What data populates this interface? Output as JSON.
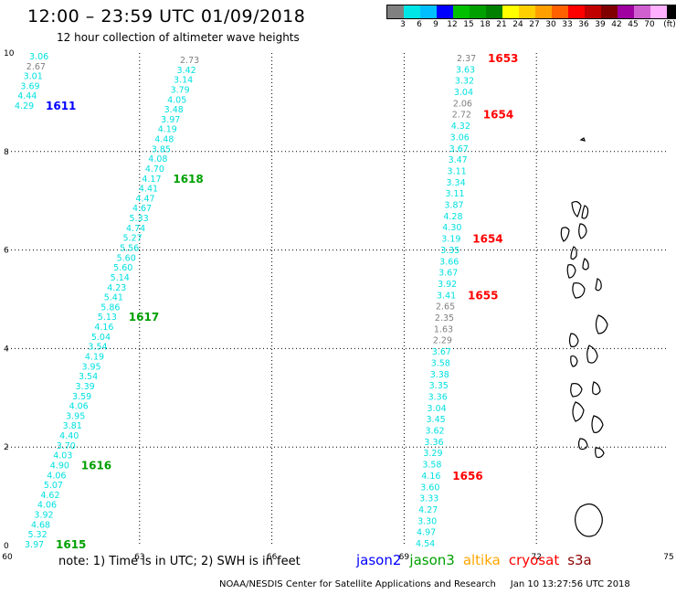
{
  "title": "12:00 – 23:59 UTC 01/09/2018",
  "subtitle": "12 hour collection of altimeter wave heights",
  "colorbar": {
    "colors": [
      "#808080",
      "#00e5e5",
      "#00bfff",
      "#0000ff",
      "#00c000",
      "#00a000",
      "#008000",
      "#ffff00",
      "#ffd000",
      "#ffa000",
      "#ff6000",
      "#ff0000",
      "#c00000",
      "#800000",
      "#a000a0",
      "#d060d0",
      "#ffb0ff",
      "#000000"
    ],
    "labels": [
      "3",
      "6",
      "9",
      "12",
      "15",
      "18",
      "21",
      "24",
      "27",
      "30",
      "33",
      "36",
      "39",
      "42",
      "45",
      "70",
      "(ft)"
    ]
  },
  "axes": {
    "x_ticks": [
      "60",
      "63",
      "66",
      "69",
      "72",
      "75"
    ],
    "y_ticks": [
      "0",
      "2",
      "4",
      "6",
      "8",
      "10"
    ]
  },
  "colors": {
    "jason2": "#0000ff",
    "jason3": "#00a000",
    "altika": "#ffa500",
    "cryosat": "#ff0000",
    "s3a": "#8b0000",
    "swh": "#00e0e0",
    "swh_gray": "#808080"
  },
  "tracks": [
    {
      "name": "left_top",
      "values": [
        {
          "t": "3.06",
          "c": "swh"
        },
        {
          "t": "2.67",
          "c": "swh_gray"
        },
        {
          "t": "3.01",
          "c": "swh"
        },
        {
          "t": "3.69",
          "c": "swh"
        },
        {
          "t": "4.44",
          "c": "swh"
        },
        {
          "t": "4.29",
          "c": "swh"
        }
      ]
    },
    {
      "name": "long_diag",
      "values": [
        {
          "t": "2.73",
          "c": "swh_gray"
        },
        {
          "t": "3.42",
          "c": "swh"
        },
        {
          "t": "3.14",
          "c": "swh"
        },
        {
          "t": "3.79",
          "c": "swh"
        },
        {
          "t": "4.05",
          "c": "swh"
        },
        {
          "t": "3.48",
          "c": "swh"
        },
        {
          "t": "3.97",
          "c": "swh"
        },
        {
          "t": "4.19",
          "c": "swh"
        },
        {
          "t": "4.48",
          "c": "swh"
        },
        {
          "t": "3.85",
          "c": "swh"
        },
        {
          "t": "4.08",
          "c": "swh"
        },
        {
          "t": "4.70",
          "c": "swh"
        },
        {
          "t": "4.17",
          "c": "swh"
        },
        {
          "t": "4.41",
          "c": "swh"
        },
        {
          "t": "4.47",
          "c": "swh"
        },
        {
          "t": "4.67",
          "c": "swh"
        },
        {
          "t": "5.33",
          "c": "swh"
        },
        {
          "t": "4.74",
          "c": "swh"
        },
        {
          "t": "5.27",
          "c": "swh"
        },
        {
          "t": "5.56",
          "c": "swh"
        },
        {
          "t": "5.60",
          "c": "swh"
        },
        {
          "t": "5.60",
          "c": "swh"
        },
        {
          "t": "5.14",
          "c": "swh"
        },
        {
          "t": "4.23",
          "c": "swh"
        },
        {
          "t": "5.41",
          "c": "swh"
        },
        {
          "t": "5.86",
          "c": "swh"
        },
        {
          "t": "5.13",
          "c": "swh"
        },
        {
          "t": "4.16",
          "c": "swh"
        },
        {
          "t": "5.04",
          "c": "swh"
        },
        {
          "t": "3.54",
          "c": "swh"
        },
        {
          "t": "4.19",
          "c": "swh"
        },
        {
          "t": "3.95",
          "c": "swh"
        },
        {
          "t": "3.54",
          "c": "swh"
        },
        {
          "t": "3.39",
          "c": "swh"
        },
        {
          "t": "3.59",
          "c": "swh"
        },
        {
          "t": "4.06",
          "c": "swh"
        },
        {
          "t": "3.95",
          "c": "swh"
        },
        {
          "t": "3.81",
          "c": "swh"
        },
        {
          "t": "4.40",
          "c": "swh"
        },
        {
          "t": "3.70",
          "c": "swh"
        },
        {
          "t": "4.03",
          "c": "swh"
        },
        {
          "t": "4.90",
          "c": "swh"
        },
        {
          "t": "4.06",
          "c": "swh"
        },
        {
          "t": "5.07",
          "c": "swh"
        },
        {
          "t": "4.62",
          "c": "swh"
        },
        {
          "t": "4.06",
          "c": "swh"
        },
        {
          "t": "3.92",
          "c": "swh"
        },
        {
          "t": "4.68",
          "c": "swh"
        },
        {
          "t": "5.32",
          "c": "swh"
        },
        {
          "t": "3.97",
          "c": "swh"
        }
      ]
    },
    {
      "name": "right_track",
      "values": [
        {
          "t": "2.37",
          "c": "swh_gray"
        },
        {
          "t": "3.63",
          "c": "swh"
        },
        {
          "t": "3.32",
          "c": "swh"
        },
        {
          "t": "3.04",
          "c": "swh"
        },
        {
          "t": "2.06",
          "c": "swh_gray"
        },
        {
          "t": "2.72",
          "c": "swh_gray"
        },
        {
          "t": "4.32",
          "c": "swh"
        },
        {
          "t": "3.06",
          "c": "swh"
        },
        {
          "t": "3.67",
          "c": "swh"
        },
        {
          "t": "3.47",
          "c": "swh"
        },
        {
          "t": "3.11",
          "c": "swh"
        },
        {
          "t": "3.34",
          "c": "swh"
        },
        {
          "t": "3.11",
          "c": "swh"
        },
        {
          "t": "3.87",
          "c": "swh"
        },
        {
          "t": "4.28",
          "c": "swh"
        },
        {
          "t": "4.30",
          "c": "swh"
        },
        {
          "t": "3.19",
          "c": "swh"
        },
        {
          "t": "3.35",
          "c": "swh"
        },
        {
          "t": "3.66",
          "c": "swh"
        },
        {
          "t": "3.67",
          "c": "swh"
        },
        {
          "t": "3.92",
          "c": "swh"
        },
        {
          "t": "3.41",
          "c": "swh"
        },
        {
          "t": "2.65",
          "c": "swh_gray"
        },
        {
          "t": "2.35",
          "c": "swh_gray"
        },
        {
          "t": "1.63",
          "c": "swh_gray"
        },
        {
          "t": "2.29",
          "c": "swh_gray"
        },
        {
          "t": "3.67",
          "c": "swh"
        },
        {
          "t": "3.58",
          "c": "swh"
        },
        {
          "t": "3.38",
          "c": "swh"
        },
        {
          "t": "3.35",
          "c": "swh"
        },
        {
          "t": "3.36",
          "c": "swh"
        },
        {
          "t": "3.04",
          "c": "swh"
        },
        {
          "t": "3.45",
          "c": "swh"
        },
        {
          "t": "3.62",
          "c": "swh"
        },
        {
          "t": "3.36",
          "c": "swh"
        },
        {
          "t": "3.29",
          "c": "swh"
        },
        {
          "t": "3.58",
          "c": "swh"
        },
        {
          "t": "4.16",
          "c": "swh"
        },
        {
          "t": "3.60",
          "c": "swh"
        },
        {
          "t": "3.33",
          "c": "swh"
        },
        {
          "t": "4.27",
          "c": "swh"
        },
        {
          "t": "3.30",
          "c": "swh"
        },
        {
          "t": "4.97",
          "c": "swh"
        },
        {
          "t": "4.54",
          "c": "swh"
        }
      ]
    }
  ],
  "time_labels": [
    {
      "t": "1611",
      "c": "jason2",
      "track": 0,
      "idx": 5
    },
    {
      "t": "1618",
      "c": "jason3",
      "track": 1,
      "idx": 12
    },
    {
      "t": "1617",
      "c": "jason3",
      "track": 1,
      "idx": 26
    },
    {
      "t": "1616",
      "c": "jason3",
      "track": 1,
      "idx": 41
    },
    {
      "t": "1615",
      "c": "jason3",
      "track": 1,
      "idx": 49
    },
    {
      "t": "1653",
      "c": "cryosat",
      "track": 2,
      "idx": 0
    },
    {
      "t": "1654",
      "c": "cryosat",
      "track": 2,
      "idx": 5
    },
    {
      "t": "1654",
      "c": "cryosat",
      "track": 2,
      "idx": 16
    },
    {
      "t": "1655",
      "c": "cryosat",
      "track": 2,
      "idx": 21
    },
    {
      "t": "1656",
      "c": "cryosat",
      "track": 2,
      "idx": 37
    }
  ],
  "legend": {
    "note": "note:  1) Time is in UTC;  2) SWH is in feet",
    "sats": [
      {
        "name": "jason2",
        "c": "jason2"
      },
      {
        "name": "jason3",
        "c": "jason3"
      },
      {
        "name": "altika",
        "c": "altika"
      },
      {
        "name": "cryosat",
        "c": "cryosat"
      },
      {
        "name": "s3a",
        "c": "s3a"
      }
    ]
  },
  "credit": "NOAA/NESDIS Center for Satellite Applications and Research     Jan 10 13:27:56 UTC 2018"
}
